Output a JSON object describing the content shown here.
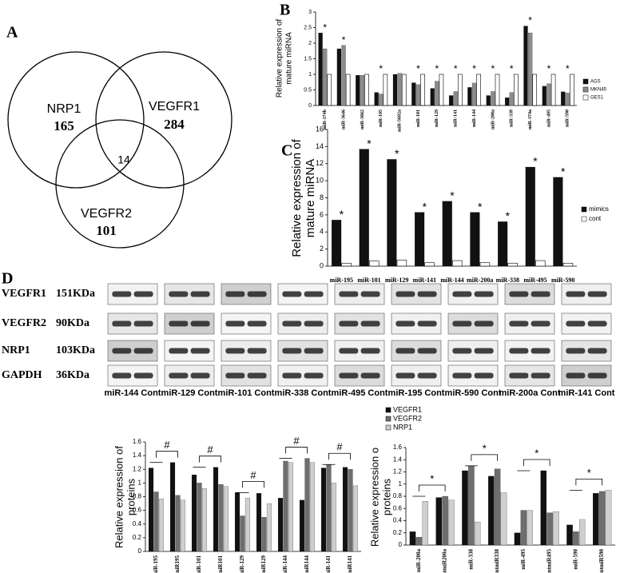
{
  "panel_labels": [
    "A",
    "B",
    "C",
    "D"
  ],
  "venn": {
    "sets": [
      {
        "label": "NRP1",
        "count": "165"
      },
      {
        "label": "VEGFR1",
        "count": "284"
      },
      {
        "label": "VEGFR2",
        "count": "101"
      }
    ],
    "intersection": "14"
  },
  "blot": {
    "rows": [
      {
        "protein": "VEGFR1",
        "size": "151KDa"
      },
      {
        "protein": "VEGFR2",
        "size": "90KDa"
      },
      {
        "protein": "NRP1",
        "size": "103KDa"
      },
      {
        "protein": "GAPDH",
        "size": "36KDa"
      }
    ],
    "columns": [
      "miR-144 Cont",
      "miR-129 Cont",
      "miR-101 Cont",
      "miR-338 Cont",
      "miR-495 Cont",
      "miR-195 Cont",
      "miR-590 Cont",
      "miR-200a Cont",
      "miR-141 Cont"
    ]
  },
  "chart_data": [
    {
      "type": "bar",
      "ylabel": [
        "Relative expression of",
        "mature miRNA"
      ],
      "categories": [
        "miR-374b",
        "miR-3646",
        "miR-3662",
        "miR-195",
        "miR-5692a",
        "miR-101",
        "miR-129",
        "miR-141",
        "miR-144",
        "miR-200a",
        "miR-338",
        "miR-374a",
        "miR-495",
        "miR-590"
      ],
      "series": [
        {
          "name": "AGS",
          "color": "#111111",
          "values": [
            2.33,
            1.82,
            0.97,
            0.42,
            1.0,
            0.73,
            0.55,
            0.32,
            0.58,
            0.32,
            0.25,
            2.55,
            0.62,
            0.44
          ]
        },
        {
          "name": "MKN45",
          "color": "#8c8c8c",
          "values": [
            1.82,
            1.93,
            0.97,
            0.37,
            1.03,
            0.67,
            0.78,
            0.45,
            0.72,
            0.45,
            0.42,
            2.33,
            0.7,
            0.4
          ]
        },
        {
          "name": "GES1",
          "color": "#ffffff",
          "values": [
            1.0,
            1.0,
            1.0,
            1.0,
            1.0,
            1.0,
            1.0,
            1.0,
            1.0,
            1.0,
            1.0,
            1.0,
            1.0,
            1.0
          ]
        }
      ],
      "significance": [
        "*",
        "*",
        null,
        "*",
        null,
        "*",
        "*",
        "*",
        "*",
        "*",
        "*",
        "*",
        "*",
        "*"
      ],
      "ylim": [
        0,
        3
      ],
      "yticks": [
        0,
        0.5,
        1,
        1.5,
        2,
        2.5,
        3
      ]
    },
    {
      "type": "bar",
      "ylabel": [
        "Relative expression of",
        "mature miRNA"
      ],
      "categories": [
        "miR-195",
        "miR-101",
        "miR-129",
        "miR-141",
        "miR-144",
        "miR-200a",
        "miR-338",
        "miR-495",
        "miR-590"
      ],
      "series": [
        {
          "name": "mimics",
          "color": "#111111",
          "values": [
            5.4,
            13.7,
            12.5,
            6.3,
            7.6,
            6.3,
            5.2,
            11.6,
            10.4
          ]
        },
        {
          "name": "cont",
          "color": "#ffffff",
          "values": [
            0.35,
            0.6,
            0.7,
            0.4,
            0.65,
            0.4,
            0.35,
            0.65,
            0.35
          ]
        }
      ],
      "significance": [
        "*",
        "*",
        "*",
        "*",
        "*",
        "*",
        "*",
        "*",
        "*"
      ],
      "ylim": [
        0,
        16
      ],
      "yticks": [
        0,
        2,
        4,
        6,
        8,
        10,
        12,
        14,
        16
      ]
    },
    {
      "type": "bar",
      "ylabel": [
        "Relative expression of",
        "proteins"
      ],
      "categories": [
        "miR-195",
        "contmiR195",
        "miR-101",
        "contmiR101",
        "miR-129",
        "contmiR129",
        "miR-144",
        "contmiR144",
        "miR-141",
        "contmiR141"
      ],
      "series": [
        {
          "name": "VEGFR1",
          "color": "#111111",
          "values": [
            1.22,
            1.3,
            1.12,
            1.23,
            0.86,
            0.85,
            0.78,
            0.75,
            1.22,
            1.23
          ]
        },
        {
          "name": "VEGFR2",
          "color": "#6e6e6e",
          "values": [
            0.87,
            0.82,
            1.0,
            0.98,
            0.52,
            0.5,
            1.32,
            1.36,
            1.27,
            1.2
          ]
        },
        {
          "name": "NRP1",
          "color": "#cfcfcf",
          "values": [
            0.77,
            0.75,
            0.92,
            0.95,
            0.78,
            0.7,
            1.3,
            1.3,
            1.0,
            0.96
          ]
        }
      ],
      "comparisons": [
        "#",
        "#",
        "#",
        "#",
        "#"
      ],
      "ylim": [
        0,
        1.6
      ],
      "yticks": [
        0,
        0.2,
        0.4,
        0.6,
        0.8,
        1,
        1.2,
        1.4,
        1.6
      ]
    },
    {
      "type": "bar",
      "ylabel": [
        "Relative expression o",
        "proteins"
      ],
      "categories": [
        "miR-200a",
        "contmiR200a",
        "miR-338",
        "contmiR338",
        "miR-495",
        "contmiR495",
        "miR-590",
        "contmiR590"
      ],
      "series": [
        {
          "name": "VEGFR1",
          "color": "#111111",
          "values": [
            0.22,
            0.78,
            1.22,
            1.13,
            0.2,
            1.22,
            0.33,
            0.85
          ]
        },
        {
          "name": "VEGFR2",
          "color": "#6e6e6e",
          "values": [
            0.13,
            0.8,
            1.3,
            1.25,
            0.57,
            0.53,
            0.22,
            0.88
          ]
        },
        {
          "name": "NRP1",
          "color": "#cfcfcf",
          "values": [
            0.72,
            0.74,
            0.38,
            0.86,
            0.57,
            0.55,
            0.42,
            0.9
          ]
        }
      ],
      "comparisons": [
        "*",
        "*",
        "*",
        "*"
      ],
      "ylim": [
        0,
        1.6
      ],
      "yticks": [
        0,
        0.2,
        0.4,
        0.6,
        0.8,
        1,
        1.2,
        1.4,
        1.6
      ]
    }
  ]
}
